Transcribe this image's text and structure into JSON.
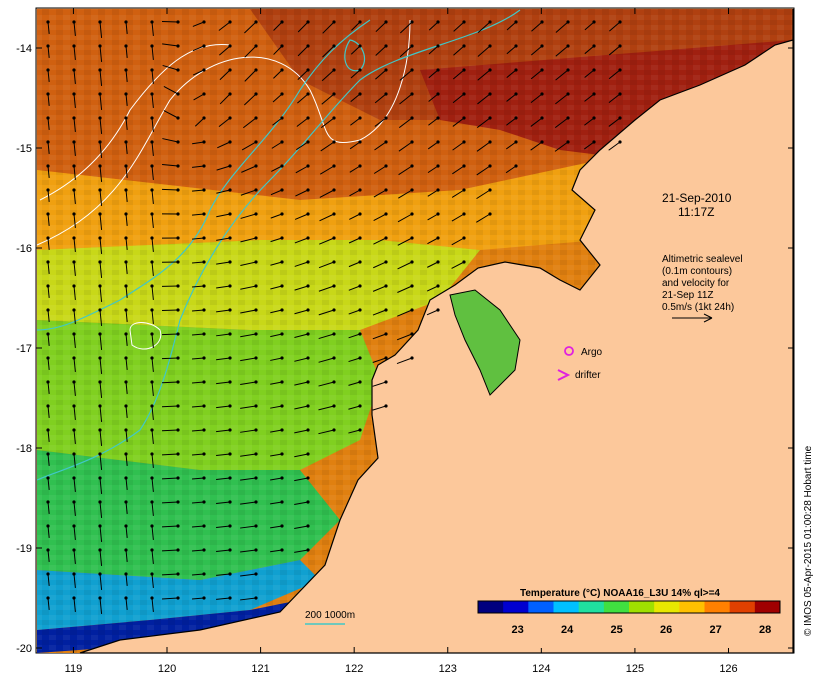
{
  "map": {
    "lon_ticks": [
      "119",
      "120",
      "121",
      "122",
      "123",
      "124",
      "125",
      "126"
    ],
    "lat_ticks": [
      "-14",
      "-15",
      "-16",
      "-17",
      "-18",
      "-19",
      "-20"
    ],
    "lon_range": [
      118.6,
      126.7
    ],
    "lat_range": [
      -13.6,
      -20.05
    ],
    "land_color": "#fcc89b",
    "coastline_color": "#000000"
  },
  "date": {
    "line1": "21-Sep-2010",
    "line2": "11:17Z"
  },
  "altimetry_note": {
    "lines": [
      "Altimetric sealevel",
      "(0.1m contours)",
      "and velocity for",
      "21-Sep 11Z",
      "0.5m/s (1kt 24h)"
    ]
  },
  "legend": {
    "argo_label": "Argo",
    "drifter_label": "drifter",
    "argo_color": "#e020e0",
    "drifter_color": "#e020e0",
    "isobath_label": "200  1000m",
    "isobath_color": "#40c8c8"
  },
  "colorbar": {
    "title": "Temperature (°C) NOAA16_L3U 14% ql>=4",
    "ticks": [
      "23",
      "24",
      "25",
      "26",
      "27",
      "28"
    ],
    "range": [
      22.2,
      28.3
    ],
    "colors": [
      "#00007f",
      "#0000d0",
      "#0060ff",
      "#00c0ff",
      "#20e0a0",
      "#40e040",
      "#a0e000",
      "#e8e800",
      "#ffc000",
      "#ff8000",
      "#e04000",
      "#a00000"
    ]
  },
  "credit": "© IMOS 05-Apr-2015 01:00:28 Hobart time"
}
